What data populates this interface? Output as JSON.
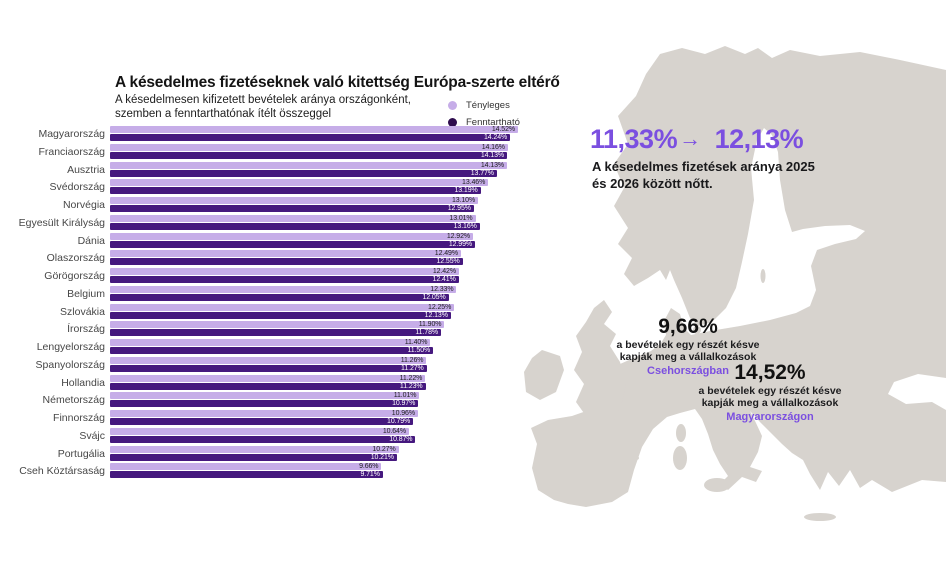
{
  "chart": {
    "title": "A késedelmes fizetéseknek való kitettség Európa-szerte eltérő",
    "subtitle_line1": "A késedelmesen kifizetett bevételek aránya országonként,",
    "subtitle_line2": "szemben a fenntarthatónak ítélt összeggel",
    "legend": [
      {
        "label": "Tényleges"
      },
      {
        "label": "Fenntartható"
      }
    ]
  },
  "chart_data": {
    "type": "bar",
    "orientation": "horizontal",
    "title": "A késedelmes fizetéseknek való kitettség Európa-szerte eltérő",
    "value_suffix": "%",
    "xlim": [
      0,
      14.52
    ],
    "grid": false,
    "legend_position": "top-right",
    "categories": [
      "Magyarország",
      "Franciaország",
      "Ausztria",
      "Svédország",
      "Norvégia",
      "Egyesült Királyság",
      "Dánia",
      "Olaszország",
      "Görögország",
      "Belgium",
      "Szlovákia",
      "Írország",
      "Lengyelország",
      "Spanyolország",
      "Hollandia",
      "Németország",
      "Finnország",
      "Svájc",
      "Portugália",
      "Cseh Köztársaság"
    ],
    "series": [
      {
        "name": "Tényleges",
        "values": [
          14.52,
          14.16,
          14.13,
          13.46,
          13.1,
          13.01,
          12.92,
          12.49,
          12.42,
          12.33,
          12.25,
          11.9,
          11.4,
          11.26,
          11.22,
          11.01,
          10.96,
          10.64,
          10.27,
          9.66
        ]
      },
      {
        "name": "Fenntartható",
        "values": [
          14.24,
          14.13,
          13.77,
          13.19,
          12.95,
          13.16,
          12.99,
          12.55,
          12.41,
          12.05,
          12.13,
          11.78,
          11.5,
          11.27,
          11.23,
          10.97,
          10.79,
          10.87,
          10.21,
          9.71
        ]
      }
    ]
  },
  "map_panel": {
    "big_stat": {
      "from": "11,33%",
      "arrow": "→",
      "to": "12,13%"
    },
    "caption_line1": "A késedelmes fizetések aránya 2025",
    "caption_line2": "és 2026 között nőtt.",
    "annotations": [
      {
        "value": "9,66%",
        "line1": "a bevételek egy részét késve",
        "line2": "kapják meg a vállalkozások",
        "country": "Csehországban"
      },
      {
        "value": "14,52%",
        "line1": "a bevételek egy részét késve",
        "line2": "kapják meg a vállalkozások",
        "country": "Magyarországon"
      }
    ]
  },
  "colors": {
    "bar_light": "#C6ADE8",
    "bar_dark": "#45187E",
    "legend_dark_dot": "#2E0C4E",
    "accent_purple": "#7B4FE0",
    "map_gray": "#D7D3CE"
  }
}
